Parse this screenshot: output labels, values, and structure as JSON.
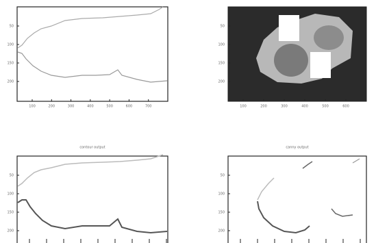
{
  "panels": [
    {
      "yticks": [
        "50",
        "100",
        "150",
        "200"
      ],
      "xticks": [
        "100",
        "200",
        "300",
        "400",
        "500",
        "600",
        "700"
      ]
    },
    {
      "yticks": [
        "50",
        "100",
        "150",
        "200"
      ],
      "xticks": [
        "100",
        "200",
        "300",
        "400",
        "500",
        "600"
      ]
    },
    {
      "title": "contour output",
      "yticks": [
        "50",
        "100",
        "150",
        "200"
      ]
    },
    {
      "title": "canny output",
      "yticks": [
        "50",
        "100",
        "150",
        "200"
      ]
    }
  ]
}
